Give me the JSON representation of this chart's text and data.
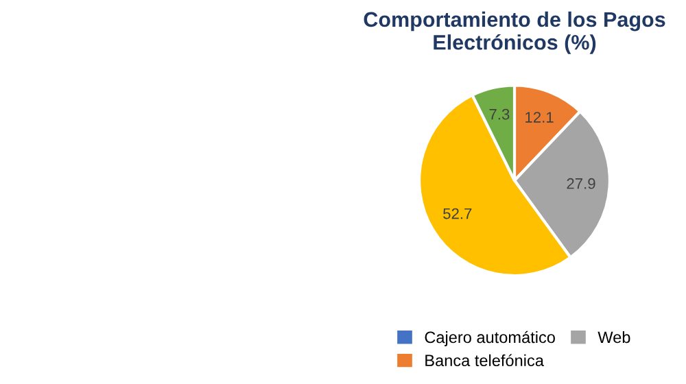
{
  "chart_data": {
    "type": "pie",
    "title": "Comportamiento de los Pagos Electrónicos (%)",
    "categories": [
      "Cajero automático",
      "Banca telefónica",
      "Web",
      null,
      null,
      null
    ],
    "values": [
      0,
      12.1,
      27.9,
      52.7,
      0,
      7.3
    ],
    "colors": [
      "#4472c4",
      "#ed7d31",
      "#a5a5a5",
      "#ffc000",
      "#264478",
      "#70ad47"
    ],
    "value_labels": [
      null,
      "12.1",
      "27.9",
      "52.7",
      null,
      "7.3"
    ],
    "legend": "bottom"
  }
}
